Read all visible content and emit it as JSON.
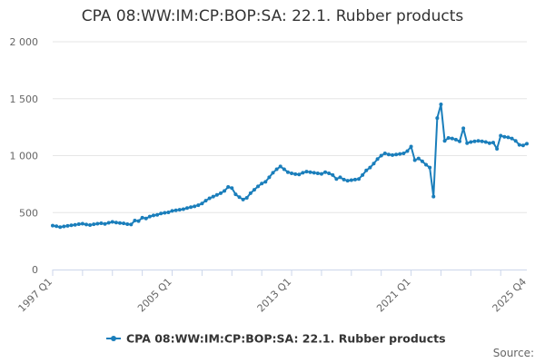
{
  "chart_data": {
    "type": "line",
    "title": "CPA 08:WW:IM:CP:BOP:SA: 22.1. Rubber products",
    "xlabel": "",
    "ylabel": "",
    "ylim": [
      0,
      2000
    ],
    "y_ticks": [
      {
        "value": 0,
        "label": "0"
      },
      {
        "value": 500,
        "label": "500"
      },
      {
        "value": 1000,
        "label": "1 000"
      },
      {
        "value": 1500,
        "label": "1 500"
      },
      {
        "value": 2000,
        "label": "2 000"
      }
    ],
    "x_tick_labels": [
      "1997 Q1",
      "2005 Q1",
      "2013 Q1",
      "2021 Q1",
      "2025 Q4"
    ],
    "x_range": [
      "1997 Q1",
      "2025 Q4"
    ],
    "legend": {
      "position": "bottom-center",
      "label": "CPA 08:WW:IM:CP:BOP:SA: 22.1. Rubber products"
    },
    "series": [
      {
        "name": "CPA 08:WW:IM:CP:BOP:SA: 22.1. Rubber products",
        "color": "#1a7ebb",
        "values": [
          385,
          380,
          372,
          378,
          383,
          388,
          392,
          398,
          402,
          395,
          390,
          397,
          402,
          406,
          400,
          410,
          418,
          412,
          408,
          405,
          398,
          395,
          430,
          425,
          455,
          448,
          465,
          475,
          480,
          492,
          498,
          502,
          515,
          520,
          525,
          530,
          540,
          548,
          555,
          565,
          580,
          605,
          625,
          640,
          655,
          670,
          690,
          725,
          715,
          660,
          635,
          615,
          630,
          670,
          700,
          730,
          755,
          770,
          810,
          850,
          880,
          905,
          880,
          855,
          845,
          838,
          835,
          850,
          860,
          855,
          850,
          845,
          840,
          855,
          845,
          830,
          795,
          810,
          790,
          780,
          785,
          790,
          795,
          830,
          870,
          895,
          930,
          970,
          1000,
          1020,
          1010,
          1005,
          1010,
          1015,
          1020,
          1040,
          1080,
          960,
          975,
          950,
          920,
          895,
          640,
          1330,
          1450,
          1130,
          1155,
          1150,
          1140,
          1125,
          1240,
          1110,
          1120,
          1125,
          1130,
          1125,
          1120,
          1110,
          1115,
          1060,
          1175,
          1165,
          1160,
          1150,
          1130,
          1095,
          1090,
          1105
        ]
      }
    ],
    "source_label": "Source:"
  }
}
